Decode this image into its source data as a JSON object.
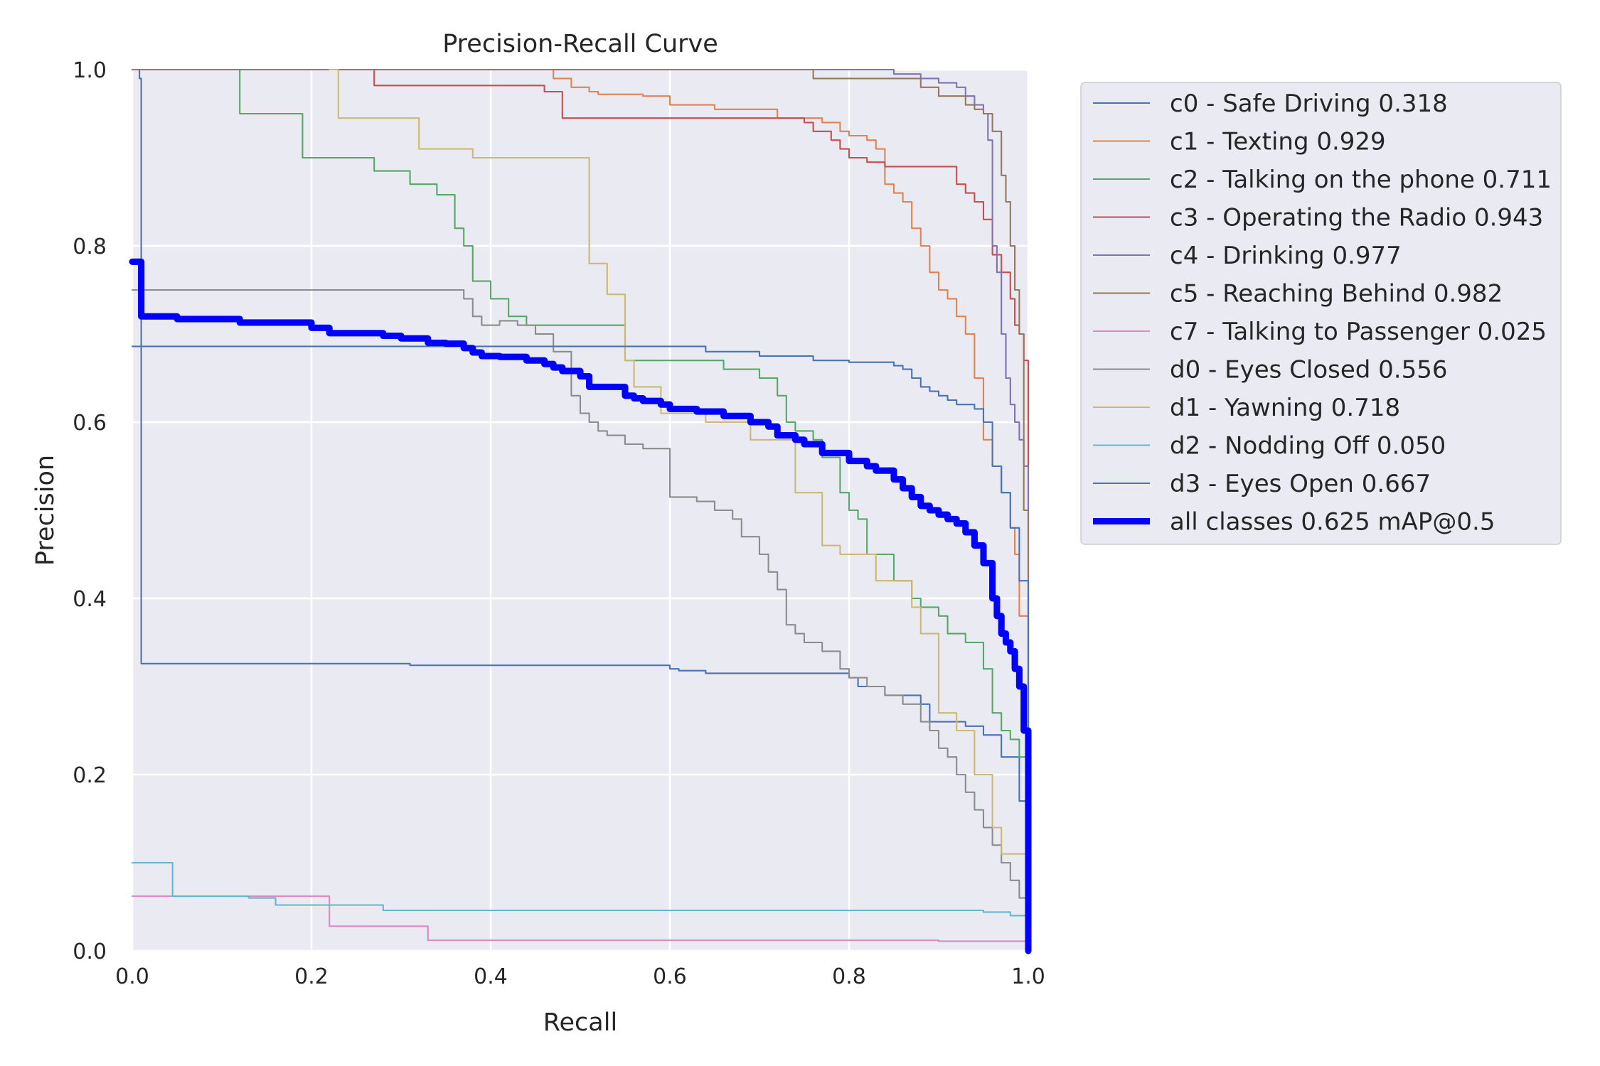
{
  "chart_data": {
    "type": "line",
    "title": "Precision-Recall Curve",
    "xlabel": "Recall",
    "ylabel": "Precision",
    "xlim": [
      0,
      1
    ],
    "ylim": [
      0,
      1
    ],
    "xticks": [
      "0.0",
      "0.2",
      "0.4",
      "0.6",
      "0.8",
      "1.0"
    ],
    "yticks": [
      "0.0",
      "0.2",
      "0.4",
      "0.6",
      "0.8",
      "1.0"
    ],
    "grid": true,
    "legend_position": "outside-right-top",
    "series": [
      {
        "name": "c0 - Safe Driving 0.318",
        "color": "#4C72B0",
        "width": 1.5,
        "x": [
          0.008,
          0.008,
          0.01,
          0.01,
          0.12,
          0.3,
          0.31,
          0.58,
          0.6,
          0.61,
          0.64,
          0.76,
          0.8,
          0.81,
          0.82,
          0.84,
          0.88,
          0.89,
          0.91,
          0.93,
          0.95,
          0.97,
          0.99,
          1.0
        ],
        "y": [
          1.0,
          0.99,
          0.327,
          0.326,
          0.326,
          0.326,
          0.324,
          0.324,
          0.32,
          0.318,
          0.315,
          0.315,
          0.31,
          0.3,
          0.3,
          0.29,
          0.28,
          0.26,
          0.26,
          0.255,
          0.245,
          0.22,
          0.17,
          0.0
        ]
      },
      {
        "name": "c1 - Texting 0.929",
        "color": "#DD8452",
        "width": 1.5,
        "x": [
          0.0,
          0.46,
          0.47,
          0.49,
          0.51,
          0.52,
          0.57,
          0.6,
          0.65,
          0.72,
          0.77,
          0.79,
          0.8,
          0.82,
          0.83,
          0.84,
          0.85,
          0.86,
          0.87,
          0.88,
          0.89,
          0.9,
          0.91,
          0.92,
          0.93,
          0.94,
          0.95,
          0.96,
          0.97,
          0.98,
          0.985,
          0.99,
          1.0
        ],
        "y": [
          1.0,
          1.0,
          0.99,
          0.98,
          0.975,
          0.972,
          0.97,
          0.96,
          0.955,
          0.945,
          0.94,
          0.93,
          0.925,
          0.92,
          0.91,
          0.87,
          0.86,
          0.85,
          0.82,
          0.8,
          0.77,
          0.75,
          0.74,
          0.72,
          0.7,
          0.65,
          0.58,
          0.55,
          0.52,
          0.48,
          0.45,
          0.38,
          0.0
        ]
      },
      {
        "name": "c2 - Talking on the phone 0.711",
        "color": "#55A868",
        "width": 1.5,
        "x": [
          0.12,
          0.12,
          0.19,
          0.19,
          0.27,
          0.27,
          0.31,
          0.31,
          0.34,
          0.34,
          0.36,
          0.36,
          0.37,
          0.37,
          0.38,
          0.38,
          0.4,
          0.4,
          0.42,
          0.42,
          0.44,
          0.44,
          0.46,
          0.46,
          0.55,
          0.55,
          0.62,
          0.62,
          0.66,
          0.66,
          0.68,
          0.7,
          0.72,
          0.72,
          0.73,
          0.73,
          0.74,
          0.74,
          0.76,
          0.77,
          0.79,
          0.8,
          0.81,
          0.82,
          0.84,
          0.85,
          0.87,
          0.88,
          0.89,
          0.9,
          0.91,
          0.93,
          0.95,
          0.96,
          0.97,
          0.98,
          0.99,
          1.0
        ],
        "y": [
          1.0,
          0.95,
          0.95,
          0.9,
          0.9,
          0.885,
          0.885,
          0.87,
          0.87,
          0.858,
          0.858,
          0.82,
          0.82,
          0.8,
          0.8,
          0.76,
          0.76,
          0.74,
          0.74,
          0.72,
          0.72,
          0.71,
          0.71,
          0.71,
          0.71,
          0.67,
          0.67,
          0.67,
          0.67,
          0.66,
          0.66,
          0.65,
          0.64,
          0.63,
          0.63,
          0.6,
          0.6,
          0.59,
          0.58,
          0.56,
          0.52,
          0.5,
          0.49,
          0.45,
          0.45,
          0.42,
          0.4,
          0.39,
          0.39,
          0.38,
          0.36,
          0.35,
          0.32,
          0.27,
          0.25,
          0.24,
          0.22,
          0.0
        ]
      },
      {
        "name": "c3 - Operating the Radio 0.943",
        "color": "#C44E52",
        "width": 1.5,
        "x": [
          0.27,
          0.27,
          0.46,
          0.46,
          0.48,
          0.48,
          0.75,
          0.75,
          0.76,
          0.78,
          0.79,
          0.8,
          0.81,
          0.82,
          0.83,
          0.84,
          0.85,
          0.87,
          0.9,
          0.92,
          0.93,
          0.94,
          0.95,
          0.96,
          0.97,
          0.98,
          0.985,
          0.99,
          0.995,
          1.0
        ],
        "y": [
          1.0,
          0.982,
          0.982,
          0.975,
          0.975,
          0.945,
          0.945,
          0.94,
          0.93,
          0.92,
          0.91,
          0.9,
          0.9,
          0.895,
          0.895,
          0.89,
          0.89,
          0.89,
          0.89,
          0.87,
          0.86,
          0.85,
          0.83,
          0.79,
          0.77,
          0.74,
          0.71,
          0.7,
          0.67,
          0.0
        ]
      },
      {
        "name": "c4 - Drinking 0.977",
        "color": "#8172B3",
        "width": 1.5,
        "x": [
          0.0,
          0.83,
          0.85,
          0.88,
          0.9,
          0.92,
          0.93,
          0.94,
          0.95,
          0.955,
          0.96,
          0.965,
          0.97,
          0.975,
          0.98,
          0.985,
          0.99,
          0.995,
          1.0
        ],
        "y": [
          1.0,
          1.0,
          0.995,
          0.99,
          0.985,
          0.98,
          0.97,
          0.96,
          0.95,
          0.92,
          0.8,
          0.77,
          0.7,
          0.65,
          0.62,
          0.6,
          0.58,
          0.55,
          0.0
        ]
      },
      {
        "name": "c5 - Reaching Behind 0.982",
        "color": "#937860",
        "width": 1.5,
        "x": [
          0.0,
          0.76,
          0.76,
          0.87,
          0.88,
          0.9,
          0.93,
          0.94,
          0.95,
          0.96,
          0.97,
          0.975,
          0.98,
          0.985,
          0.99,
          0.995,
          1.0
        ],
        "y": [
          1.0,
          1.0,
          0.99,
          0.99,
          0.98,
          0.97,
          0.96,
          0.955,
          0.95,
          0.93,
          0.88,
          0.85,
          0.8,
          0.75,
          0.7,
          0.5,
          0.0
        ]
      },
      {
        "name": "c7 - Talking to Passenger 0.025",
        "color": "#DA8BC3",
        "width": 1.5,
        "x": [
          0.0,
          0.22,
          0.22,
          0.33,
          0.33,
          0.88,
          0.9,
          1.0
        ],
        "y": [
          0.062,
          0.062,
          0.028,
          0.028,
          0.012,
          0.012,
          0.011,
          0.011
        ]
      },
      {
        "name": "d0 - Eyes Closed 0.556",
        "color": "#8C8C8C",
        "width": 1.5,
        "x": [
          0.0,
          0.36,
          0.37,
          0.38,
          0.39,
          0.41,
          0.43,
          0.45,
          0.47,
          0.49,
          0.5,
          0.51,
          0.52,
          0.53,
          0.55,
          0.57,
          0.57,
          0.6,
          0.6,
          0.63,
          0.65,
          0.67,
          0.68,
          0.7,
          0.71,
          0.72,
          0.73,
          0.74,
          0.75,
          0.77,
          0.79,
          0.8,
          0.82,
          0.84,
          0.86,
          0.88,
          0.89,
          0.9,
          0.91,
          0.92,
          0.93,
          0.94,
          0.95,
          0.96,
          0.97,
          0.98,
          0.99,
          1.0
        ],
        "y": [
          0.75,
          0.75,
          0.74,
          0.72,
          0.71,
          0.715,
          0.71,
          0.7,
          0.68,
          0.63,
          0.61,
          0.6,
          0.59,
          0.585,
          0.575,
          0.57,
          0.57,
          0.515,
          0.515,
          0.51,
          0.5,
          0.49,
          0.47,
          0.45,
          0.43,
          0.41,
          0.37,
          0.36,
          0.35,
          0.34,
          0.32,
          0.31,
          0.3,
          0.29,
          0.28,
          0.26,
          0.25,
          0.23,
          0.22,
          0.2,
          0.18,
          0.16,
          0.14,
          0.12,
          0.1,
          0.08,
          0.06,
          0.0
        ]
      },
      {
        "name": "d1 - Yawning 0.718",
        "color": "#CCB974",
        "width": 1.5,
        "x": [
          0.22,
          0.23,
          0.23,
          0.32,
          0.32,
          0.38,
          0.38,
          0.51,
          0.51,
          0.53,
          0.53,
          0.55,
          0.55,
          0.56,
          0.56,
          0.59,
          0.59,
          0.64,
          0.64,
          0.69,
          0.69,
          0.74,
          0.74,
          0.77,
          0.77,
          0.79,
          0.79,
          0.83,
          0.83,
          0.87,
          0.87,
          0.88,
          0.88,
          0.9,
          0.9,
          0.92,
          0.92,
          0.94,
          0.94,
          0.96,
          0.96,
          0.97,
          0.97,
          1.0
        ],
        "y": [
          1.0,
          1.0,
          0.945,
          0.945,
          0.91,
          0.91,
          0.9,
          0.9,
          0.78,
          0.78,
          0.745,
          0.745,
          0.67,
          0.67,
          0.64,
          0.64,
          0.61,
          0.61,
          0.6,
          0.6,
          0.58,
          0.58,
          0.52,
          0.52,
          0.46,
          0.46,
          0.45,
          0.45,
          0.42,
          0.42,
          0.39,
          0.39,
          0.36,
          0.36,
          0.27,
          0.27,
          0.25,
          0.25,
          0.2,
          0.2,
          0.14,
          0.14,
          0.11,
          0.11
        ]
      },
      {
        "name": "d2 - Nodding Off 0.050",
        "color": "#64B5CD",
        "width": 1.5,
        "x": [
          0.0,
          0.045,
          0.045,
          0.13,
          0.16,
          0.24,
          0.28,
          0.9,
          0.95,
          0.98,
          1.0
        ],
        "y": [
          0.1,
          0.1,
          0.062,
          0.06,
          0.052,
          0.052,
          0.046,
          0.046,
          0.044,
          0.04,
          0.0
        ]
      },
      {
        "name": "d3 - Eyes Open 0.667",
        "color": "#4C72B0",
        "width": 1.5,
        "x": [
          0.0,
          0.62,
          0.64,
          0.7,
          0.74,
          0.76,
          0.8,
          0.85,
          0.86,
          0.87,
          0.88,
          0.89,
          0.9,
          0.91,
          0.92,
          0.94,
          0.95,
          0.96,
          0.97,
          0.98,
          0.99,
          1.0
        ],
        "y": [
          0.686,
          0.686,
          0.68,
          0.675,
          0.675,
          0.67,
          0.668,
          0.664,
          0.66,
          0.65,
          0.64,
          0.635,
          0.63,
          0.625,
          0.62,
          0.615,
          0.6,
          0.55,
          0.52,
          0.48,
          0.42,
          0.0
        ]
      },
      {
        "name": "all classes 0.625 mAP@0.5",
        "color": "#0000FF",
        "width": 6.5,
        "x": [
          0.0,
          0.01,
          0.01,
          0.04,
          0.05,
          0.12,
          0.12,
          0.2,
          0.2,
          0.22,
          0.22,
          0.28,
          0.3,
          0.3,
          0.33,
          0.35,
          0.37,
          0.38,
          0.39,
          0.41,
          0.44,
          0.46,
          0.47,
          0.48,
          0.5,
          0.51,
          0.51,
          0.55,
          0.55,
          0.56,
          0.57,
          0.59,
          0.6,
          0.63,
          0.66,
          0.69,
          0.71,
          0.72,
          0.74,
          0.75,
          0.77,
          0.8,
          0.82,
          0.83,
          0.85,
          0.86,
          0.87,
          0.88,
          0.89,
          0.9,
          0.91,
          0.92,
          0.93,
          0.94,
          0.95,
          0.96,
          0.965,
          0.97,
          0.975,
          0.98,
          0.985,
          0.99,
          0.995,
          1.0
        ],
        "y": [
          0.782,
          0.782,
          0.72,
          0.72,
          0.717,
          0.717,
          0.713,
          0.711,
          0.707,
          0.707,
          0.701,
          0.698,
          0.698,
          0.695,
          0.69,
          0.689,
          0.684,
          0.679,
          0.675,
          0.674,
          0.67,
          0.666,
          0.662,
          0.658,
          0.652,
          0.645,
          0.64,
          0.636,
          0.63,
          0.627,
          0.624,
          0.62,
          0.615,
          0.612,
          0.607,
          0.6,
          0.595,
          0.585,
          0.58,
          0.575,
          0.565,
          0.556,
          0.55,
          0.545,
          0.535,
          0.525,
          0.515,
          0.505,
          0.5,
          0.495,
          0.49,
          0.485,
          0.475,
          0.46,
          0.44,
          0.4,
          0.38,
          0.36,
          0.35,
          0.34,
          0.32,
          0.3,
          0.25,
          0.0
        ]
      }
    ]
  }
}
